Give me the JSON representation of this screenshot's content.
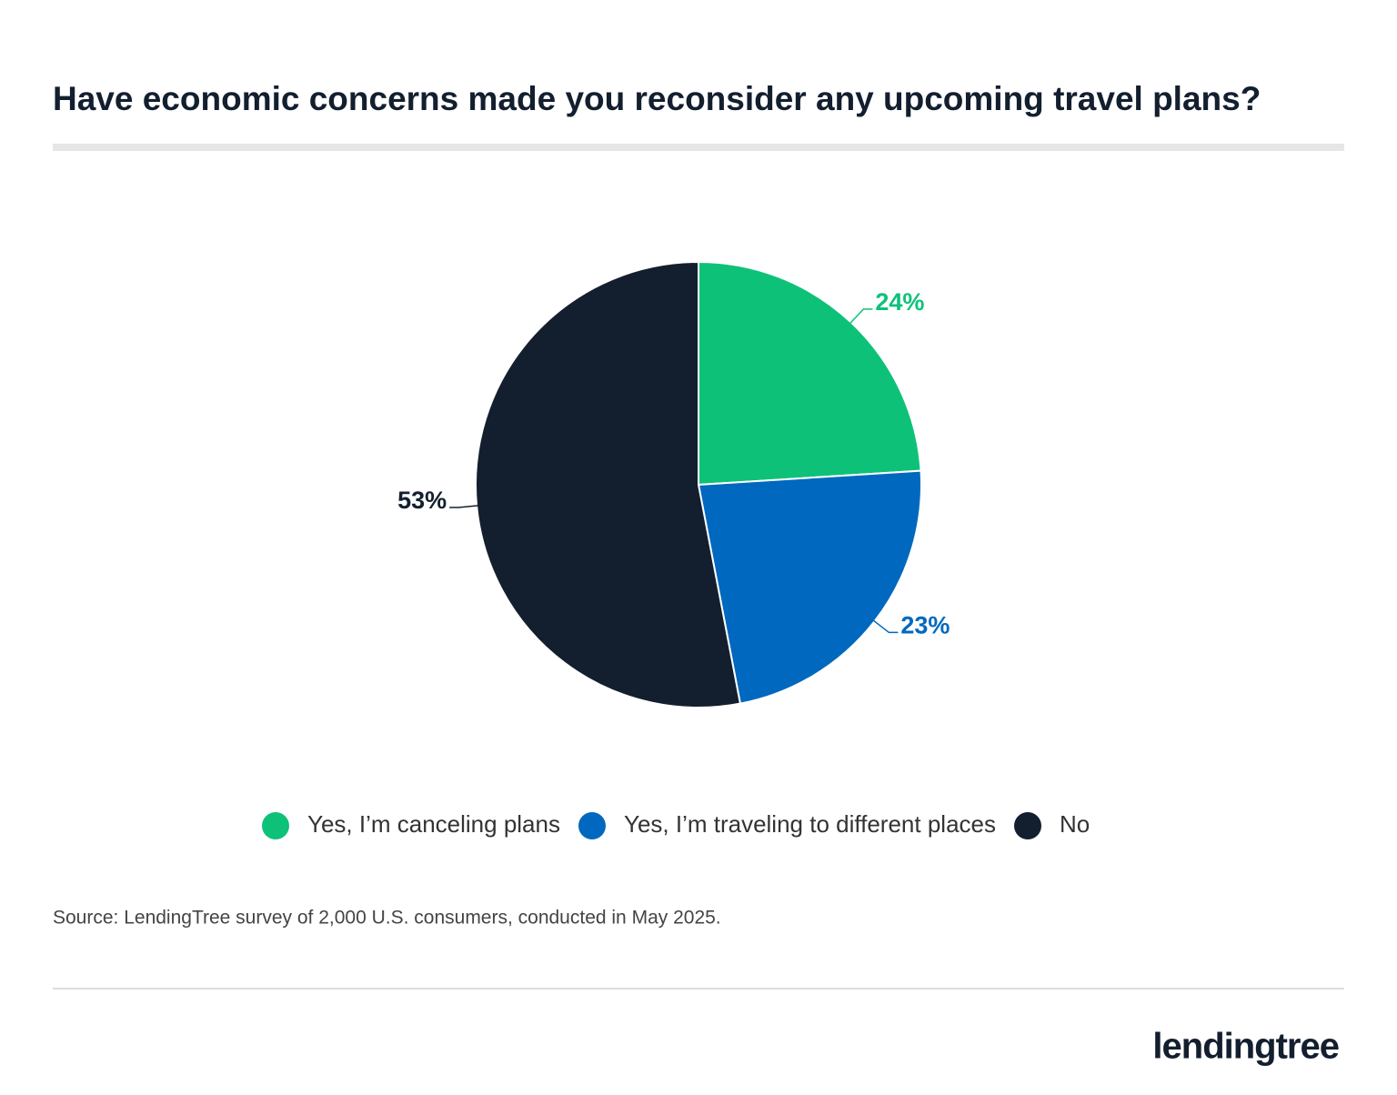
{
  "chart_data": {
    "type": "pie",
    "title": "Have economic concerns made you reconsider any upcoming travel plans?",
    "categories": [
      "Yes, I’m canceling plans",
      "Yes, I’m traveling to different places",
      "No"
    ],
    "values": [
      24,
      23,
      53
    ],
    "value_labels": [
      "24%",
      "23%",
      "53%"
    ],
    "colors": [
      "#0dc278",
      "#0068bf",
      "#131f2f"
    ],
    "source": "Source: LendingTree survey of 2,000 U.S. consumers, conducted in May 2025.",
    "brand": "lendingtree"
  }
}
